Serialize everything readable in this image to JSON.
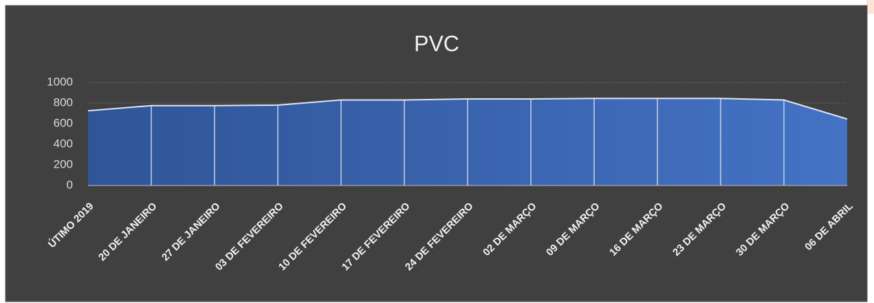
{
  "chart_data": {
    "type": "area",
    "title": "PVC",
    "categories": [
      "ÚTIMO 2019",
      "20 DE JANEIRO",
      "27 DE JANEIRO",
      "03 DE FEVEREIRO",
      "10 DE FEVEREIRO",
      "17 DE FEVEREIRO",
      "24 DE FEVEREIRO",
      "02 DE MARÇO",
      "09 DE MARÇO",
      "16 DE MARÇO",
      "23 DE MARÇO",
      "30 DE MARÇO",
      "06 DE ABRIL"
    ],
    "values": [
      725,
      775,
      775,
      780,
      830,
      830,
      840,
      840,
      845,
      845,
      845,
      830,
      645
    ],
    "colors": [
      "#2f5597",
      "#4472c4"
    ],
    "ylim": [
      0,
      1000
    ],
    "yticks": [
      0,
      200,
      400,
      600,
      800,
      1000
    ],
    "grid": true
  }
}
